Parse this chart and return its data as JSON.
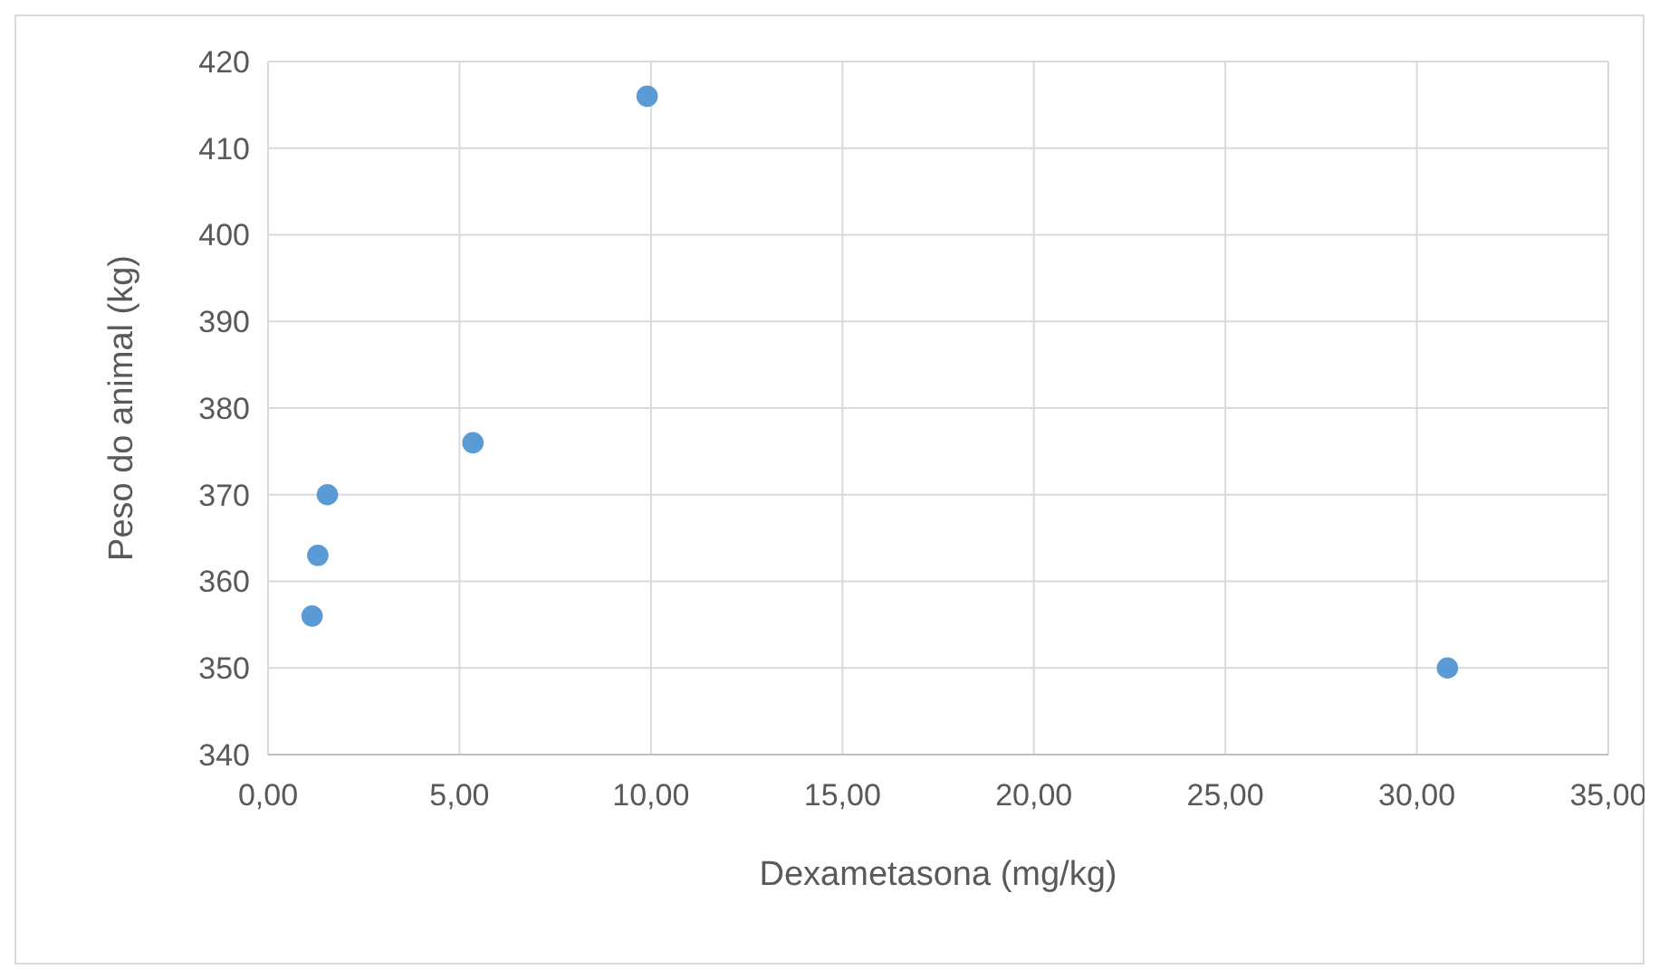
{
  "chart_data": {
    "type": "scatter",
    "xlabel": "Dexametasona (mg/kg)",
    "ylabel": "Peso do animal (kg)",
    "x": [
      1.15,
      1.3,
      1.55,
      5.35,
      9.9,
      30.8
    ],
    "series": [
      {
        "color": "#5b9bd5",
        "values": [
          356,
          363,
          370,
          376,
          416,
          350
        ]
      }
    ],
    "xlim": [
      0,
      35
    ],
    "xticks": [
      {
        "value": 0,
        "label": "0,00"
      },
      {
        "value": 5,
        "label": "5,00"
      },
      {
        "value": 10,
        "label": "10,00"
      },
      {
        "value": 15,
        "label": "15,00"
      },
      {
        "value": 20,
        "label": "20,00"
      },
      {
        "value": 25,
        "label": "25,00"
      },
      {
        "value": 30,
        "label": "30,00"
      },
      {
        "value": 35,
        "label": "35,00"
      }
    ],
    "ylim": [
      340,
      420
    ],
    "yticks": [
      340,
      350,
      360,
      370,
      380,
      390,
      400,
      410,
      420
    ],
    "grid": true,
    "marker": "circle"
  }
}
